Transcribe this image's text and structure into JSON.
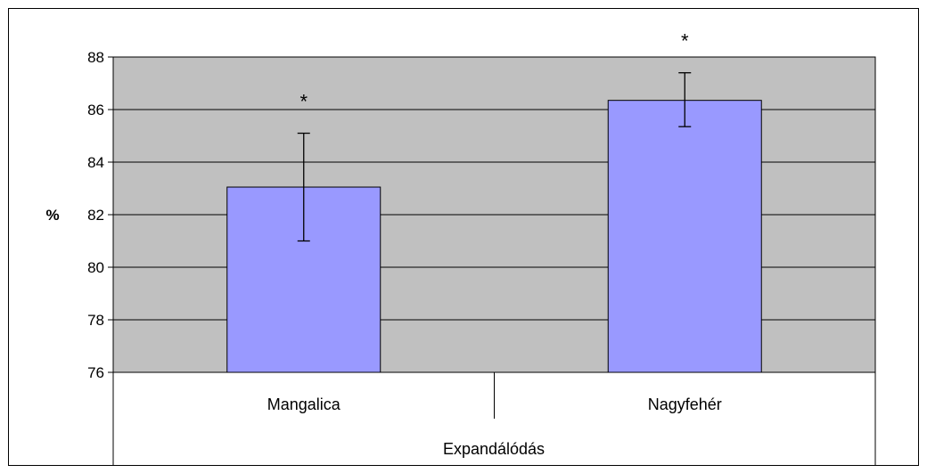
{
  "chart_data": {
    "type": "bar",
    "title": "",
    "xlabel": "Expandálódás",
    "ylabel": "%",
    "ylim": [
      76,
      88
    ],
    "yticks": [
      76,
      78,
      80,
      82,
      84,
      86,
      88
    ],
    "grid": true,
    "legend": "none",
    "categories": [
      "Mangalica",
      "Nagyfehér"
    ],
    "values": [
      83.05,
      86.35
    ],
    "error_bars": [
      {
        "low": 81.0,
        "high": 85.1
      },
      {
        "low": 85.35,
        "high": 87.4
      }
    ],
    "annotations": [
      "*",
      "*"
    ],
    "colors": {
      "bar_fill": "#9999ff",
      "bar_stroke": "#000000",
      "plot_background": "#c0c0c0",
      "gridline": "#000000",
      "axis": "#000000"
    }
  }
}
